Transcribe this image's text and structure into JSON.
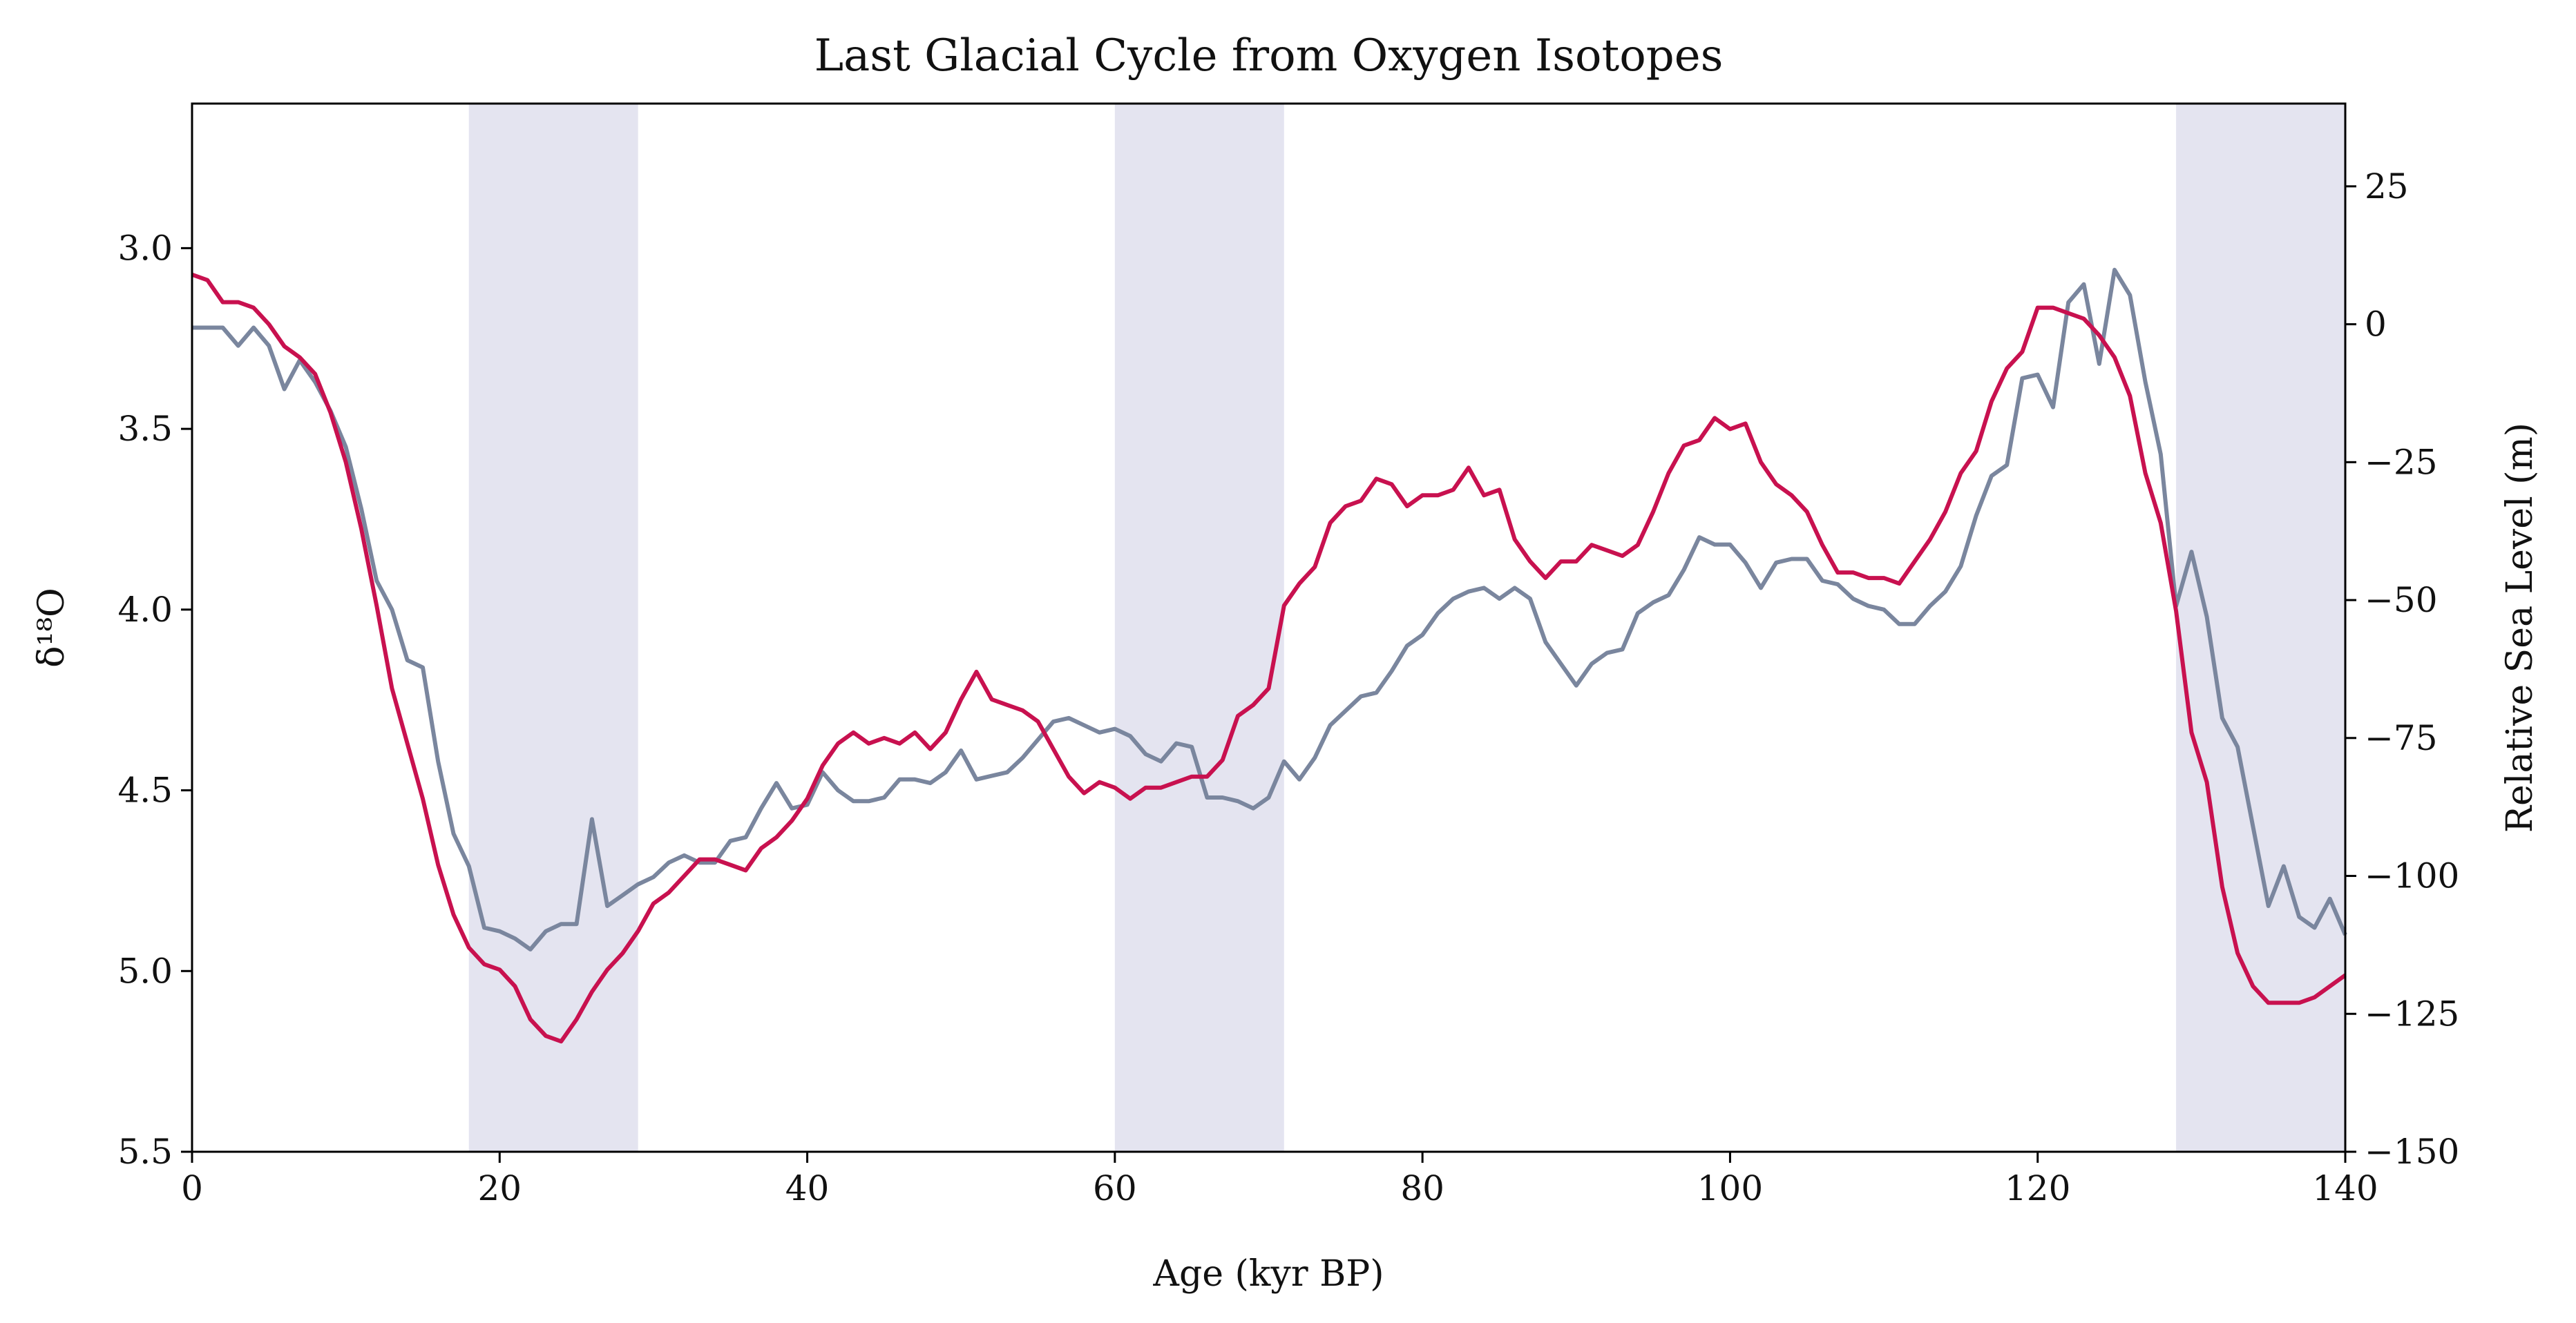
{
  "chart_data": {
    "type": "line",
    "title": "Last Glacial Cycle from Oxygen Isotopes",
    "xlabel": "Age (kyr BP)",
    "ylabel_left": "δ¹⁸O",
    "ylabel_right": "Relative Sea Level (m)",
    "xlim": [
      0,
      140
    ],
    "ylim_left": [
      5.5,
      2.6
    ],
    "ylim_left_inverted": true,
    "ylim_right": [
      -150,
      40
    ],
    "x_ticks": [
      "0",
      "20",
      "40",
      "60",
      "80",
      "100",
      "120",
      "140"
    ],
    "y_left_ticks": [
      "3.0",
      "3.5",
      "4.0",
      "4.5",
      "5.0",
      "5.5"
    ],
    "y_right_ticks": [
      "25",
      "0",
      "−25",
      "−50",
      "−75",
      "−100",
      "−125",
      "−150"
    ],
    "grid": false,
    "shaded_intervals": [
      [
        18,
        29
      ],
      [
        60,
        71
      ],
      [
        129,
        140
      ]
    ],
    "colors": {
      "d18o": "#7a869e",
      "sea_level": "#c8114f",
      "shade": "#e4e4f0",
      "right_axis_label": "#c8114f"
    },
    "series": [
      {
        "axis": "left",
        "x": [
          0,
          1,
          2,
          3,
          4,
          5,
          6,
          7,
          8,
          9,
          10,
          11,
          12,
          13,
          14,
          15,
          16,
          17,
          18,
          19,
          20,
          21,
          22,
          23,
          24,
          25,
          26,
          27,
          28,
          29,
          30,
          31,
          32,
          33,
          34,
          35,
          36,
          37,
          38,
          39,
          40,
          41,
          42,
          43,
          44,
          45,
          46,
          47,
          48,
          49,
          50,
          51,
          52,
          53,
          54,
          55,
          56,
          57,
          58,
          59,
          60,
          61,
          62,
          63,
          64,
          65,
          66,
          67,
          68,
          69,
          70,
          71,
          72,
          73,
          74,
          75,
          76,
          77,
          78,
          79,
          80,
          81,
          82,
          83,
          84,
          85,
          86,
          87,
          88,
          89,
          90,
          91,
          92,
          93,
          94,
          95,
          96,
          97,
          98,
          99,
          100,
          101,
          102,
          103,
          104,
          105,
          106,
          107,
          108,
          109,
          110,
          111,
          112,
          113,
          114,
          115,
          116,
          117,
          118,
          119,
          120,
          121,
          122,
          123,
          124,
          125,
          126,
          127,
          128,
          129,
          130,
          131,
          132,
          133,
          134,
          135,
          136,
          137,
          138,
          139,
          140
        ],
        "values": [
          3.22,
          3.22,
          3.22,
          3.27,
          3.22,
          3.27,
          3.39,
          3.31,
          3.37,
          3.45,
          3.55,
          3.72,
          3.92,
          4.0,
          4.14,
          4.16,
          4.42,
          4.62,
          4.71,
          4.88,
          4.89,
          4.91,
          4.94,
          4.89,
          4.87,
          4.87,
          4.58,
          4.82,
          4.79,
          4.76,
          4.74,
          4.7,
          4.68,
          4.7,
          4.7,
          4.64,
          4.63,
          4.55,
          4.48,
          4.55,
          4.54,
          4.45,
          4.5,
          4.53,
          4.53,
          4.52,
          4.47,
          4.47,
          4.48,
          4.45,
          4.39,
          4.47,
          4.46,
          4.45,
          4.41,
          4.36,
          4.31,
          4.3,
          4.32,
          4.34,
          4.33,
          4.35,
          4.4,
          4.42,
          4.37,
          4.38,
          4.52,
          4.52,
          4.53,
          4.55,
          4.52,
          4.42,
          4.47,
          4.41,
          4.32,
          4.28,
          4.24,
          4.23,
          4.17,
          4.1,
          4.07,
          4.01,
          3.97,
          3.95,
          3.94,
          3.97,
          3.94,
          3.97,
          4.09,
          4.15,
          4.21,
          4.15,
          4.12,
          4.11,
          4.01,
          3.98,
          3.96,
          3.89,
          3.8,
          3.82,
          3.82,
          3.87,
          3.94,
          3.87,
          3.86,
          3.86,
          3.92,
          3.93,
          3.97,
          3.99,
          4.0,
          4.04,
          4.04,
          3.99,
          3.95,
          3.88,
          3.74,
          3.63,
          3.6,
          3.36,
          3.35,
          3.44,
          3.15,
          3.1,
          3.32,
          3.06,
          3.13,
          3.37,
          3.57,
          3.99,
          3.84,
          4.02,
          4.3,
          4.38,
          4.6,
          4.82,
          4.71,
          4.85,
          4.88,
          4.8,
          4.9
        ]
      },
      {
        "axis": "right",
        "x": [
          0,
          1,
          2,
          3,
          4,
          5,
          6,
          7,
          8,
          9,
          10,
          11,
          12,
          13,
          14,
          15,
          16,
          17,
          18,
          19,
          20,
          21,
          22,
          23,
          24,
          25,
          26,
          27,
          28,
          29,
          30,
          31,
          32,
          33,
          34,
          35,
          36,
          37,
          38,
          39,
          40,
          41,
          42,
          43,
          44,
          45,
          46,
          47,
          48,
          49,
          50,
          51,
          52,
          53,
          54,
          55,
          56,
          57,
          58,
          59,
          60,
          61,
          62,
          63,
          64,
          65,
          66,
          67,
          68,
          69,
          70,
          71,
          72,
          73,
          74,
          75,
          76,
          77,
          78,
          79,
          80,
          81,
          82,
          83,
          84,
          85,
          86,
          87,
          88,
          89,
          90,
          91,
          92,
          93,
          94,
          95,
          96,
          97,
          98,
          99,
          100,
          101,
          102,
          103,
          104,
          105,
          106,
          107,
          108,
          109,
          110,
          111,
          112,
          113,
          114,
          115,
          116,
          117,
          118,
          119,
          120,
          121,
          122,
          123,
          124,
          125,
          126,
          127,
          128,
          129,
          130,
          131,
          132,
          133,
          134,
          135,
          136,
          137,
          138,
          139,
          140
        ],
        "values": [
          9,
          8,
          4,
          4,
          3,
          0,
          -4,
          -6,
          -9,
          -16,
          -25,
          -37,
          -51,
          -66,
          -76,
          -86,
          -98,
          -107,
          -113,
          -116,
          -117,
          -120,
          -126,
          -129,
          -130,
          -126,
          -121,
          -117,
          -114,
          -110,
          -105,
          -103,
          -100,
          -97,
          -97,
          -98,
          -99,
          -95,
          -93,
          -90,
          -86,
          -80,
          -76,
          -74,
          -76,
          -75,
          -76,
          -74,
          -77,
          -74,
          -68,
          -63,
          -68,
          -69,
          -70,
          -72,
          -77,
          -82,
          -85,
          -83,
          -84,
          -86,
          -84,
          -84,
          -83,
          -82,
          -82,
          -79,
          -71,
          -69,
          -66,
          -51,
          -47,
          -44,
          -36,
          -33,
          -32,
          -28,
          -29,
          -33,
          -31,
          -31,
          -30,
          -26,
          -31,
          -30,
          -39,
          -43,
          -46,
          -43,
          -43,
          -40,
          -41,
          -42,
          -40,
          -34,
          -27,
          -22,
          -21,
          -17,
          -19,
          -18,
          -25,
          -29,
          -31,
          -34,
          -40,
          -45,
          -45,
          -46,
          -46,
          -47,
          -43,
          -39,
          -34,
          -27,
          -23,
          -14,
          -8,
          -5,
          3,
          3,
          2,
          1,
          -2,
          -6,
          -13,
          -27,
          -36,
          -52,
          -74,
          -83,
          -102,
          -114,
          -120,
          -123,
          -123,
          -123,
          -122,
          -120,
          -118
        ]
      }
    ]
  }
}
